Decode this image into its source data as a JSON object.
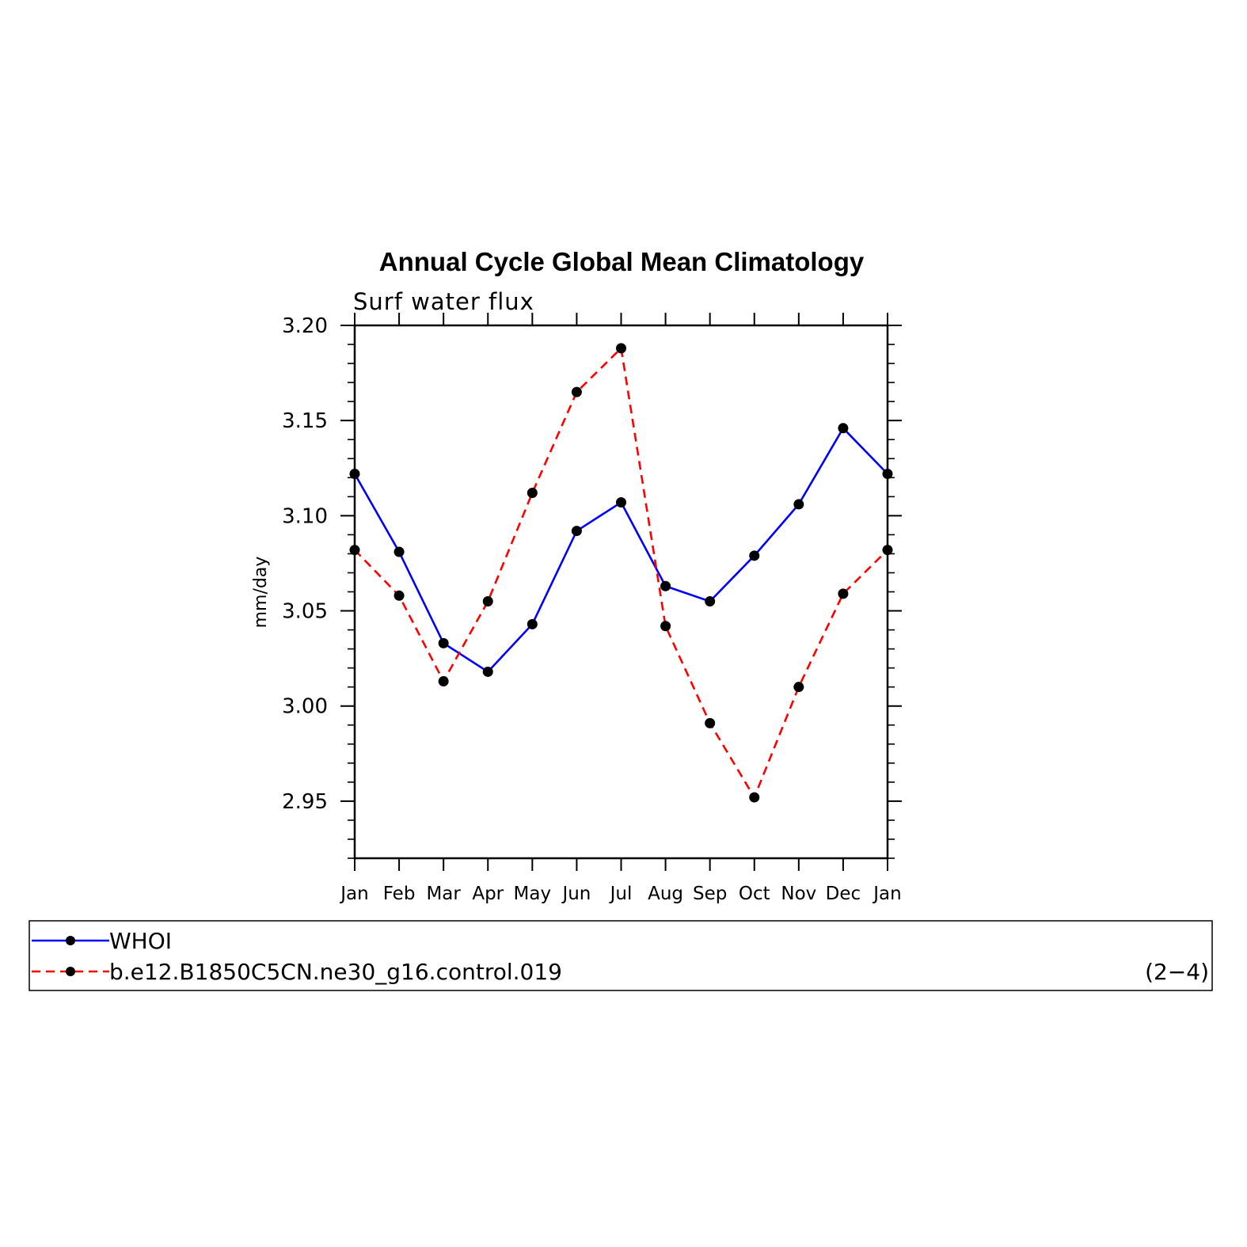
{
  "chart_data": {
    "type": "line",
    "title": "Annual Cycle Global Mean Climatology",
    "subtitle": "Surf water flux",
    "xlabel": "",
    "ylabel": "mm/day",
    "categories": [
      "Jan",
      "Feb",
      "Mar",
      "Apr",
      "May",
      "Jun",
      "Jul",
      "Aug",
      "Sep",
      "Oct",
      "Nov",
      "Dec",
      "Jan"
    ],
    "ylim": [
      2.92,
      3.2
    ],
    "yticks": [
      "3.20",
      "3.15",
      "3.10",
      "3.05",
      "3.00",
      "2.95"
    ],
    "ytick_values": [
      3.2,
      3.15,
      3.1,
      3.05,
      3.0,
      2.95
    ],
    "series": [
      {
        "name": "WHOI",
        "color": "#0000ff",
        "dash": "solid",
        "values": [
          3.122,
          3.081,
          3.033,
          3.018,
          3.043,
          3.092,
          3.107,
          3.063,
          3.055,
          3.079,
          3.106,
          3.146,
          3.122
        ]
      },
      {
        "name": "b.e12.B1850C5CN.ne30_g16.control.019",
        "color": "#ff0000",
        "dash": "dashed",
        "values": [
          3.082,
          3.058,
          3.013,
          3.055,
          3.112,
          3.165,
          3.188,
          3.042,
          2.991,
          2.952,
          3.01,
          3.059,
          3.082
        ]
      }
    ],
    "legend_placement": "bottom",
    "grid": false
  },
  "panel_label": "(2−4)"
}
